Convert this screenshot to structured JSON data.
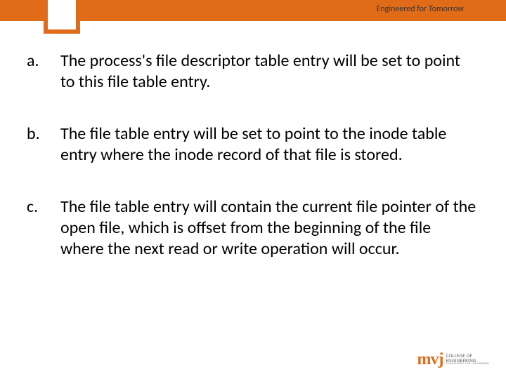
{
  "header": {
    "bar_color": "#e06c1a",
    "tagline": "Engineered for Tomorrow"
  },
  "items": [
    {
      "marker": "a.",
      "text": "The process's file descriptor table entry will be set to point to this file table entry."
    },
    {
      "marker": "b.",
      "text": " The file table entry will be set to point to the inode table entry where the inode record of that file is stored."
    },
    {
      "marker": "c.",
      "text": "The file table entry will contain the current file pointer of the open file, which is offset from the beginning of the file where the next read or write operation will occur."
    }
  ],
  "logo": {
    "mark": "mvj",
    "line1": "COLLEGE OF",
    "line2": "ENGINEERING",
    "sub": "ENGINEERED FOR TOMORROW"
  }
}
